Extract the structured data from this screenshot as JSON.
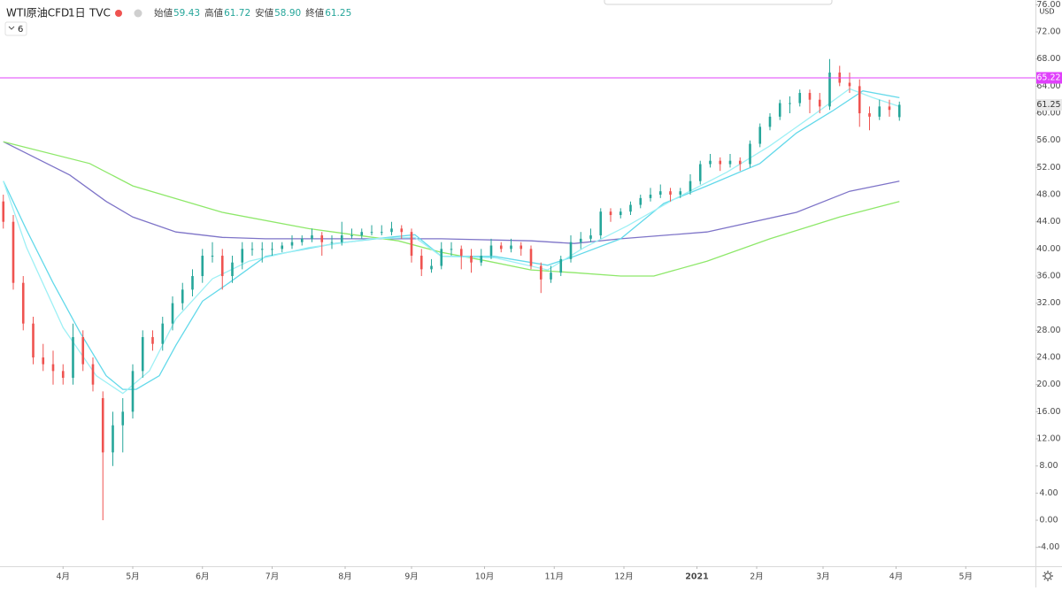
{
  "chart_data": {
    "type": "candlestick",
    "title": "WTI原油CFD",
    "interval": "1日",
    "source": "TVC",
    "ohlc_legend": [
      {
        "name": "始値",
        "value": {
          "value": 59.43,
          "label": "59.43"
        }
      },
      {
        "name": "高値",
        "value": {
          "value": 61.72,
          "label": "61.72"
        }
      },
      {
        "name": "安値",
        "value": {
          "value": 58.9,
          "label": "58.90"
        }
      },
      {
        "name": "終値",
        "value": {
          "value": 61.25,
          "label": "61.25"
        }
      }
    ],
    "indicator_count": 6,
    "currency": "USD",
    "up_color": "#26a69a",
    "down_color": "#ef5350",
    "xlim": [
      -1,
      311
    ],
    "xticks": [
      {
        "value": 18,
        "label": "4月"
      },
      {
        "value": 39,
        "label": "5月"
      },
      {
        "value": 60,
        "label": "6月"
      },
      {
        "value": 81,
        "label": "7月"
      },
      {
        "value": 103,
        "label": "8月"
      },
      {
        "value": 123,
        "label": "9月"
      },
      {
        "value": 145,
        "label": "10月"
      },
      {
        "value": 166,
        "label": "11月"
      },
      {
        "value": 187,
        "label": "12月"
      },
      {
        "value": 209,
        "label": "2021"
      },
      {
        "value": 227,
        "label": "2月"
      },
      {
        "value": 247,
        "label": "3月"
      },
      {
        "value": 269,
        "label": "4月"
      },
      {
        "value": 290,
        "label": "5月"
      }
    ],
    "ylim": [
      -6.78,
      76.7
    ],
    "yticks": [
      {
        "value": -4,
        "label": "-4.00"
      },
      {
        "value": 0,
        "label": "0.00"
      },
      {
        "value": 4,
        "label": "4.00"
      },
      {
        "value": 8,
        "label": "8.00"
      },
      {
        "value": 12,
        "label": "12.00"
      },
      {
        "value": 16,
        "label": "16.00"
      },
      {
        "value": 20,
        "label": "20.00"
      },
      {
        "value": 24,
        "label": "24.00"
      },
      {
        "value": 28,
        "label": "28.00"
      },
      {
        "value": 32,
        "label": "32.00"
      },
      {
        "value": 36,
        "label": "36.00"
      },
      {
        "value": 40,
        "label": "40.00"
      },
      {
        "value": 44,
        "label": "44.00"
      },
      {
        "value": 48,
        "label": "48.00"
      },
      {
        "value": 52,
        "label": "52.00"
      },
      {
        "value": 56,
        "label": "56.00"
      },
      {
        "value": 60,
        "label": "60.00"
      },
      {
        "value": 64,
        "label": "64.00"
      },
      {
        "value": 68,
        "label": "68.00"
      },
      {
        "value": 72,
        "label": "72.00"
      },
      {
        "value": 76,
        "label": "76.00"
      }
    ],
    "grid": false,
    "price_line": {
      "value": 65.22,
      "color": "#e040fb"
    },
    "x": [
      0,
      3,
      6,
      9,
      12,
      15,
      18,
      21,
      24,
      27,
      30,
      33,
      36,
      39,
      42,
      45,
      48,
      51,
      54,
      57,
      60,
      63,
      66,
      69,
      72,
      75,
      78,
      81,
      84,
      87,
      90,
      93,
      96,
      99,
      102,
      105,
      108,
      111,
      114,
      117,
      120,
      123,
      126,
      129,
      132,
      135,
      138,
      141,
      144,
      147,
      150,
      153,
      156,
      159,
      162,
      165,
      168,
      171,
      174,
      177,
      180,
      183,
      186,
      189,
      192,
      195,
      198,
      201,
      204,
      207,
      210,
      213,
      216,
      219,
      222,
      225,
      228,
      231,
      234,
      237,
      240,
      243,
      246,
      249,
      252,
      255,
      258,
      261,
      264,
      267,
      270
    ],
    "candles": [
      [
        47,
        48,
        43,
        44
      ],
      [
        44,
        45,
        34,
        35
      ],
      [
        35,
        36,
        28,
        29
      ],
      [
        29,
        30,
        23,
        24
      ],
      [
        24,
        26,
        22,
        23
      ],
      [
        23,
        25,
        20,
        22
      ],
      [
        22,
        23,
        20,
        21
      ],
      [
        21,
        29,
        20,
        27
      ],
      [
        27,
        28,
        22,
        23
      ],
      [
        23,
        24,
        19,
        20
      ],
      [
        18,
        19,
        0,
        10
      ],
      [
        10,
        16,
        8,
        14
      ],
      [
        14,
        18,
        10,
        16
      ],
      [
        16,
        23,
        15,
        22
      ],
      [
        22,
        28,
        21,
        27
      ],
      [
        27,
        28,
        25,
        26
      ],
      [
        26,
        30,
        25,
        29
      ],
      [
        29,
        33,
        28,
        32
      ],
      [
        32,
        35,
        31,
        34
      ],
      [
        34,
        37,
        33,
        36
      ],
      [
        36,
        40,
        35,
        39
      ],
      [
        39,
        41,
        38,
        39
      ],
      [
        39,
        40,
        34,
        36
      ],
      [
        36,
        39,
        35,
        38
      ],
      [
        38,
        41,
        37,
        40
      ],
      [
        40,
        41,
        39,
        40
      ],
      [
        40,
        41,
        38,
        40
      ],
      [
        40,
        41,
        39,
        40
      ],
      [
        40,
        41,
        39.5,
        40.5
      ],
      [
        40.5,
        42,
        40,
        41
      ],
      [
        41,
        42,
        40.5,
        41.5
      ],
      [
        41.5,
        43,
        41,
        42
      ],
      [
        42,
        42.5,
        39,
        41
      ],
      [
        41,
        42,
        40,
        41
      ],
      [
        41,
        44,
        40.5,
        42
      ],
      [
        42,
        43,
        41.5,
        42
      ],
      [
        42,
        43,
        41.5,
        42.5
      ],
      [
        42.5,
        43.5,
        42,
        42.5
      ],
      [
        42.5,
        43.5,
        42,
        42.5
      ],
      [
        42.5,
        44,
        42,
        43
      ],
      [
        43,
        43.5,
        41.5,
        42.5
      ],
      [
        42.5,
        43,
        38,
        39
      ],
      [
        39,
        40,
        36,
        37
      ],
      [
        37,
        38.5,
        36.5,
        37.5
      ],
      [
        37.5,
        41,
        37,
        40
      ],
      [
        40,
        41,
        39,
        40
      ],
      [
        40,
        40.5,
        37,
        39
      ],
      [
        39,
        40,
        36.5,
        38
      ],
      [
        38,
        40,
        37.5,
        39
      ],
      [
        39,
        41.5,
        38.5,
        40.5
      ],
      [
        40.5,
        41,
        39.5,
        40
      ],
      [
        40,
        41.5,
        39.5,
        40.5
      ],
      [
        40.5,
        41,
        39,
        40
      ],
      [
        40,
        40.5,
        37,
        37.5
      ],
      [
        37.5,
        38,
        33.5,
        35.5
      ],
      [
        35.5,
        37.5,
        35,
        36.5
      ],
      [
        36.5,
        39,
        36,
        38.5
      ],
      [
        38.5,
        42,
        38,
        41
      ],
      [
        41,
        42.5,
        40,
        41.5
      ],
      [
        41.5,
        43,
        41,
        42
      ],
      [
        42,
        46,
        41.5,
        45.5
      ],
      [
        45.5,
        46,
        44,
        45
      ],
      [
        45,
        46,
        44.5,
        45.5
      ],
      [
        45.5,
        47,
        45,
        46.5
      ],
      [
        46.5,
        48,
        46,
        47.5
      ],
      [
        47.5,
        49,
        47,
        48
      ],
      [
        48,
        49.5,
        47.5,
        48.5
      ],
      [
        48.5,
        49,
        47,
        48
      ],
      [
        48,
        49,
        47.5,
        48.5
      ],
      [
        48.5,
        51,
        48,
        50
      ],
      [
        50,
        53,
        49.5,
        52.5
      ],
      [
        52.5,
        54,
        52,
        53
      ],
      [
        53,
        53.5,
        51.5,
        52.5
      ],
      [
        52.5,
        54,
        52,
        53
      ],
      [
        53,
        53.5,
        51.5,
        52.5
      ],
      [
        52.5,
        56,
        52,
        55.5
      ],
      [
        55.5,
        58.5,
        55,
        58
      ],
      [
        58,
        60,
        57.5,
        59.5
      ],
      [
        59.5,
        62,
        59,
        61.5
      ],
      [
        61.5,
        62.5,
        60,
        61.5
      ],
      [
        61.5,
        63.5,
        61,
        63
      ],
      [
        63,
        63.5,
        60,
        62
      ],
      [
        62,
        63,
        60,
        61
      ],
      [
        61,
        68,
        60.5,
        66
      ],
      [
        66,
        67,
        64,
        64.5
      ],
      [
        64.5,
        66,
        63,
        64
      ],
      [
        64,
        65,
        58,
        60
      ],
      [
        60,
        61,
        57.5,
        59.5
      ],
      [
        59.5,
        62,
        59,
        61
      ],
      [
        61,
        62,
        59.5,
        60.5
      ],
      [
        59.43,
        61.72,
        58.9,
        61.25
      ]
    ],
    "moving_averages": [
      {
        "color": "#7e74c8",
        "x": [
          0,
          20,
          31,
          39,
          52,
          66,
          79,
          106,
          132,
          159,
          172,
          186,
          212,
          239,
          255,
          270
        ],
        "values": [
          55.8,
          50.9,
          47,
          44.7,
          42.5,
          41.7,
          41.5,
          41.5,
          41.5,
          41.2,
          40.8,
          41.5,
          42.5,
          45.4,
          48.5,
          50
        ]
      },
      {
        "color": "#8ee86a",
        "x": [
          0,
          26,
          39,
          66,
          92,
          119,
          132,
          146,
          159,
          172,
          186,
          196,
          212,
          231,
          252,
          270
        ],
        "values": [
          55.8,
          52.6,
          49.3,
          45.4,
          43,
          41.2,
          39.5,
          38.2,
          36.9,
          36.5,
          36,
          36,
          38.2,
          41.5,
          44.7,
          47
        ]
      },
      {
        "color": "#63d9ea",
        "x": [
          0,
          7,
          15,
          23,
          31,
          36,
          40,
          47,
          52,
          60,
          68,
          79,
          100,
          116,
          124,
          132,
          148,
          164,
          172,
          186,
          199,
          212,
          228,
          239,
          250,
          259,
          270
        ],
        "values": [
          50,
          42.8,
          35,
          27.8,
          21.3,
          19.3,
          19.3,
          21.3,
          25.8,
          32.3,
          35,
          38.9,
          40.8,
          41.7,
          42.1,
          38.9,
          38.9,
          37.6,
          38.9,
          41.5,
          46.7,
          49.3,
          52.6,
          57.1,
          60.4,
          63.3,
          62.3
        ]
      },
      {
        "color": "#9ef0f5",
        "x": [
          0,
          7,
          18,
          28,
          36,
          44,
          52,
          63,
          74,
          92,
          111,
          124,
          132,
          148,
          164,
          175,
          188,
          202,
          218,
          231,
          244,
          255,
          262,
          270
        ],
        "values": [
          50,
          40.2,
          28.4,
          21.3,
          18.7,
          22,
          29.7,
          35.6,
          38.2,
          40.2,
          41.5,
          41.7,
          38.9,
          38.7,
          36.9,
          40.2,
          43.4,
          47.3,
          51.3,
          55.2,
          59.7,
          63.6,
          62.3,
          61
        ]
      }
    ]
  }
}
